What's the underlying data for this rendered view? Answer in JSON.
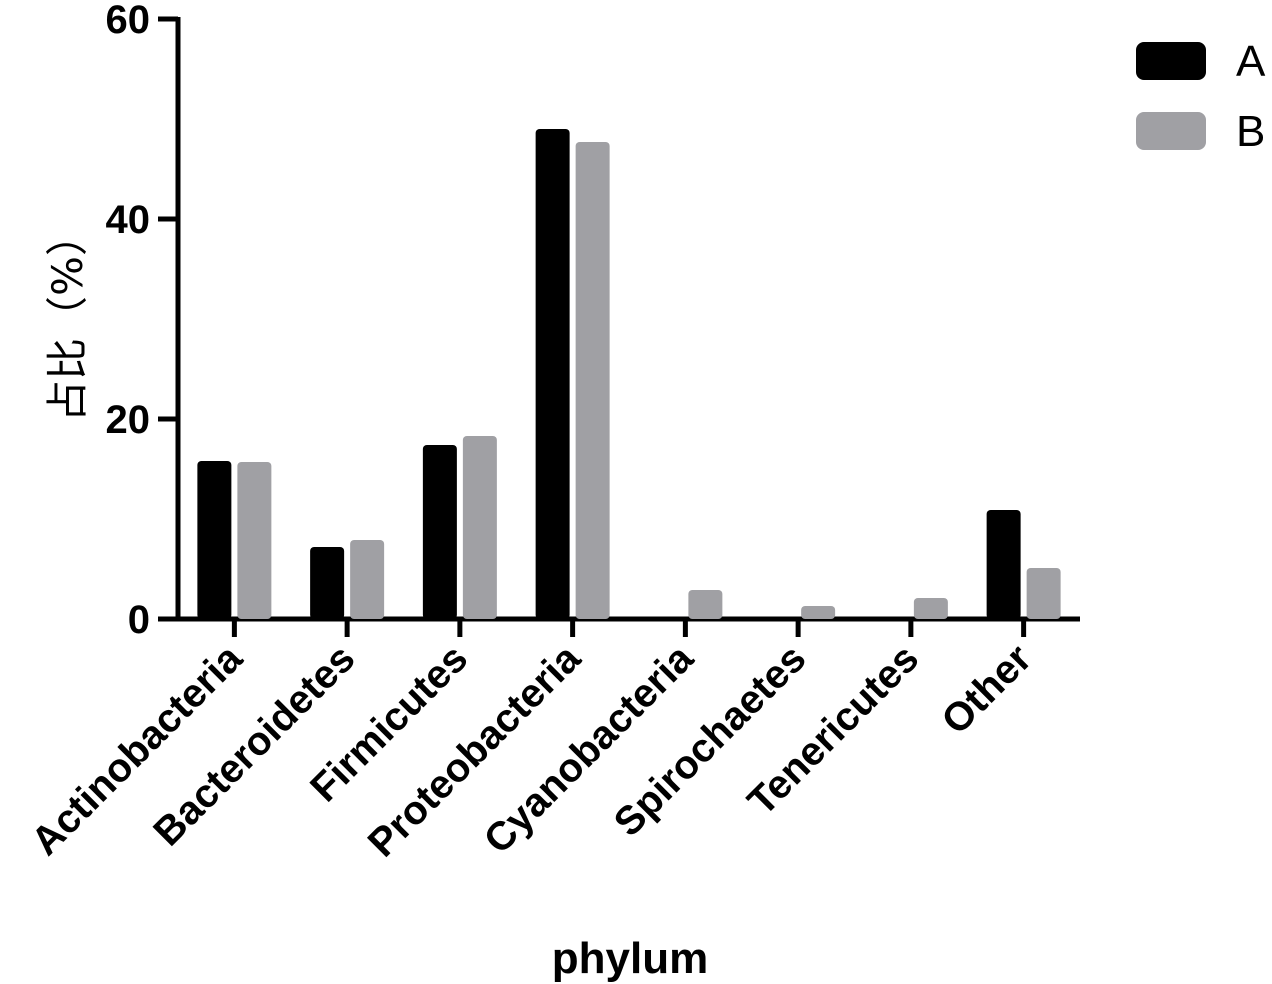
{
  "chart_data": {
    "type": "bar",
    "categories": [
      "Actinobacteria",
      "Bacteroidetes",
      "Firmicutes",
      "Proteobacteria",
      "Cyanobacteria",
      "Spirochaetes",
      "Tenericutes",
      "Other"
    ],
    "series": [
      {
        "name": "A",
        "color": "#000000",
        "values": [
          15.8,
          7.2,
          17.4,
          49.0,
          0,
          0,
          0,
          10.9
        ]
      },
      {
        "name": "B",
        "color": "#a0a0a4",
        "values": [
          15.7,
          7.9,
          18.3,
          47.7,
          2.9,
          1.3,
          2.1,
          5.1
        ]
      }
    ],
    "xlabel": "phylum",
    "ylabel": "占比（%）",
    "ylim": [
      0,
      60
    ],
    "yticks": [
      "0",
      "20",
      "40",
      "60"
    ],
    "grid": false,
    "legend_position": "top-right"
  }
}
